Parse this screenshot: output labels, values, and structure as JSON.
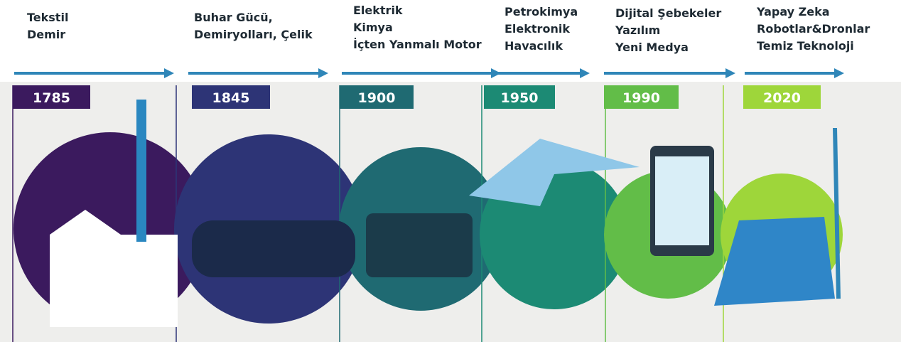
{
  "eras": [
    {
      "year": "1785",
      "lines": [
        "Tekstil",
        "Demir"
      ],
      "color": "#3b1a5e"
    },
    {
      "year": "1845",
      "lines": [
        "Buhar Gücü,",
        "Demiryolları, Çelik"
      ],
      "color": "#2d3476"
    },
    {
      "year": "1900",
      "lines": [
        "Elektrik",
        "Kimya",
        "İçten Yanmalı Motor"
      ],
      "color": "#1f6a72"
    },
    {
      "year": "1950",
      "lines": [
        "Petrokimya",
        "Elektronik",
        "Havacılık"
      ],
      "color": "#1c8a74"
    },
    {
      "year": "1990",
      "lines": [
        "Dijital Şebekeler",
        "Yazılım",
        "Yeni Medya"
      ],
      "color": "#62bd48"
    },
    {
      "year": "2020",
      "lines": [
        "Yapay Zeka",
        "Robotlar&Dronlar",
        "Temiz Teknoloji"
      ],
      "color": "#9ed63a"
    }
  ]
}
